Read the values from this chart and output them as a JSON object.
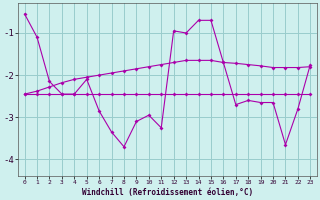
{
  "xlabel": "Windchill (Refroidissement éolien,°C)",
  "bg_color": "#cff0ee",
  "line_color": "#aa00aa",
  "grid_color": "#99cccc",
  "x": [
    0,
    1,
    2,
    3,
    4,
    5,
    6,
    7,
    8,
    9,
    10,
    11,
    12,
    13,
    14,
    15,
    16,
    17,
    18,
    19,
    20,
    21,
    22,
    23
  ],
  "line1": [
    -0.55,
    -1.1,
    -2.15,
    -2.45,
    -2.45,
    -2.1,
    -2.85,
    -3.35,
    -3.7,
    -3.1,
    -2.95,
    -3.25,
    -0.95,
    -1.0,
    -0.7,
    -0.7,
    -1.7,
    -2.7,
    -2.6,
    -2.65,
    -2.65,
    -3.65,
    -2.8,
    -1.75
  ],
  "line2": [
    -2.45,
    -2.45,
    -2.45,
    -2.45,
    -2.45,
    -2.45,
    -2.45,
    -2.45,
    -2.45,
    -2.45,
    -2.45,
    -2.45,
    -2.45,
    -2.45,
    -2.45,
    -2.45,
    -2.45,
    -2.45,
    -2.45,
    -2.45,
    -2.45,
    -2.45,
    -2.45,
    -2.45
  ],
  "line3": [
    -2.45,
    -2.38,
    -2.28,
    -2.18,
    -2.1,
    -2.05,
    -2.0,
    -1.95,
    -1.9,
    -1.85,
    -1.8,
    -1.75,
    -1.7,
    -1.65,
    -1.65,
    -1.65,
    -1.7,
    -1.72,
    -1.75,
    -1.78,
    -1.82,
    -1.82,
    -1.82,
    -1.8
  ],
  "ylim": [
    -4.4,
    -0.3
  ],
  "yticks": [
    -4,
    -3,
    -2,
    -1
  ],
  "xlim": [
    -0.5,
    23.5
  ]
}
